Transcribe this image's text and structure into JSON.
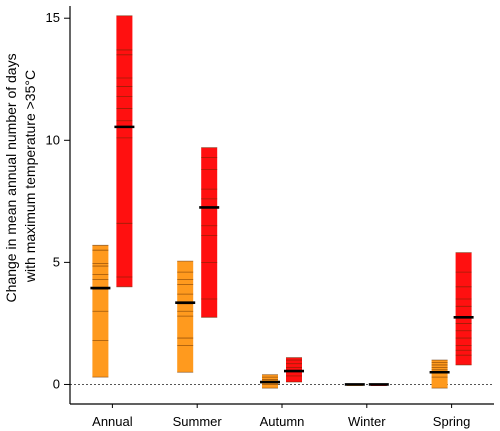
{
  "chart_data": {
    "type": "bar",
    "ylabel_lines": [
      "Change in mean annual number of days",
      "with maximum temperature >35°C"
    ],
    "ylim": [
      -0.8,
      15.5
    ],
    "yticks": [
      0,
      5,
      10,
      15
    ],
    "y_tick_labels": [
      "0",
      "5",
      "10",
      "15"
    ],
    "zero_line": "dashed",
    "categories": [
      "Annual",
      "Summer",
      "Autumn",
      "Winter",
      "Spring"
    ],
    "series": [
      {
        "color": "#ff9a1e",
        "bars": [
          {
            "low": 0.3,
            "high": 5.7,
            "median": 3.95,
            "members": [
              0.3,
              1.8,
              3.0,
              3.9,
              4.3,
              4.5,
              4.85,
              4.95,
              5.5,
              5.7
            ]
          },
          {
            "low": 0.5,
            "high": 5.05,
            "median": 3.35,
            "members": [
              0.5,
              1.6,
              1.9,
              2.8,
              3.0,
              3.3,
              3.7,
              4.1,
              4.3,
              4.6,
              5.05
            ]
          },
          {
            "low": -0.15,
            "high": 0.4,
            "median": 0.1,
            "members": [
              -0.15,
              0.0,
              0.2,
              0.3,
              0.4
            ]
          },
          {
            "low": -0.02,
            "high": 0.02,
            "median": 0.0,
            "members": [
              -0.02,
              0.02
            ]
          },
          {
            "low": -0.15,
            "high": 1.0,
            "median": 0.5,
            "members": [
              -0.15,
              0.3,
              0.6,
              0.7,
              0.8,
              0.9,
              1.0
            ]
          }
        ]
      },
      {
        "color": "#ff1010",
        "bars": [
          {
            "low": 4.0,
            "high": 15.1,
            "median": 10.55,
            "members": [
              4.0,
              4.4,
              6.6,
              10.1,
              10.8,
              11.3,
              11.8,
              12.2,
              12.55,
              13.5,
              13.7,
              15.1
            ]
          },
          {
            "low": 2.75,
            "high": 9.7,
            "median": 7.25,
            "members": [
              2.75,
              3.5,
              5.0,
              6.1,
              6.5,
              7.6,
              8.0,
              8.8,
              9.3,
              9.7
            ]
          },
          {
            "low": 0.1,
            "high": 1.1,
            "median": 0.55,
            "members": [
              0.1,
              0.35,
              0.7,
              0.85,
              1.0,
              1.1
            ]
          },
          {
            "low": -0.02,
            "high": 0.02,
            "median": 0.0,
            "members": [
              -0.02,
              0.02
            ]
          },
          {
            "low": 0.8,
            "high": 5.4,
            "median": 2.75,
            "members": [
              0.8,
              1.2,
              1.4,
              1.6,
              1.9,
              2.2,
              2.5,
              3.2,
              3.5,
              4.0,
              4.6,
              5.4
            ]
          }
        ]
      }
    ]
  }
}
